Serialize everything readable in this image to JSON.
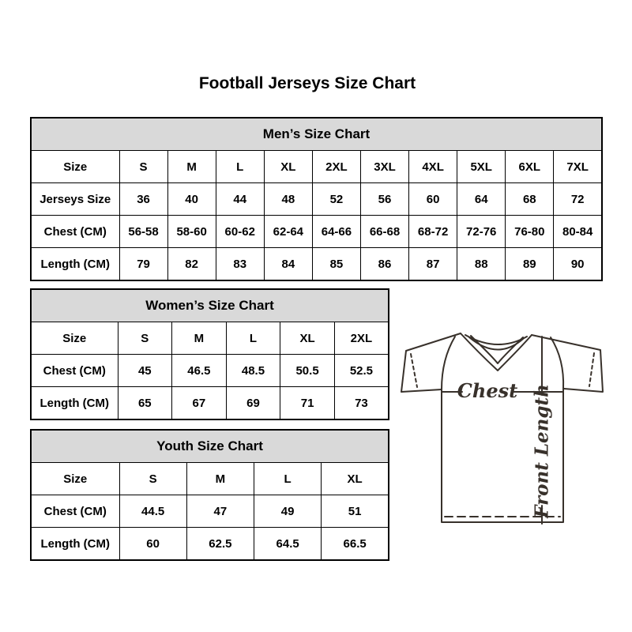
{
  "page": {
    "title": "Football Jerseys Size Chart"
  },
  "colors": {
    "header_bg": "#d9d9d9",
    "table_border": "#000000",
    "text": "#000000",
    "diagram_line": "#38312b"
  },
  "diagram": {
    "chest_label": "Chest",
    "front_length_label": "Front Length"
  },
  "chart_data": [
    {
      "type": "table",
      "name": "mens",
      "title": "Men’s Size Chart",
      "rows": [
        [
          "Size",
          "S",
          "M",
          "L",
          "XL",
          "2XL",
          "3XL",
          "4XL",
          "5XL",
          "6XL",
          "7XL"
        ],
        [
          "Jerseys Size",
          "36",
          "40",
          "44",
          "48",
          "52",
          "56",
          "60",
          "64",
          "68",
          "72"
        ],
        [
          "Chest (CM)",
          "56-58",
          "58-60",
          "60-62",
          "62-64",
          "64-66",
          "66-68",
          "68-72",
          "72-76",
          "76-80",
          "80-84"
        ],
        [
          "Length (CM)",
          "79",
          "82",
          "83",
          "84",
          "85",
          "86",
          "87",
          "88",
          "89",
          "90"
        ]
      ]
    },
    {
      "type": "table",
      "name": "womens",
      "title": "Women’s Size Chart",
      "rows": [
        [
          "Size",
          "S",
          "M",
          "L",
          "XL",
          "2XL"
        ],
        [
          "Chest (CM)",
          "45",
          "46.5",
          "48.5",
          "50.5",
          "52.5"
        ],
        [
          "Length (CM)",
          "65",
          "67",
          "69",
          "71",
          "73"
        ]
      ]
    },
    {
      "type": "table",
      "name": "youth",
      "title": "Youth Size Chart",
      "rows": [
        [
          "Size",
          "S",
          "M",
          "L",
          "XL"
        ],
        [
          "Chest (CM)",
          "44.5",
          "47",
          "49",
          "51"
        ],
        [
          "Length (CM)",
          "60",
          "62.5",
          "64.5",
          "66.5"
        ]
      ]
    }
  ]
}
